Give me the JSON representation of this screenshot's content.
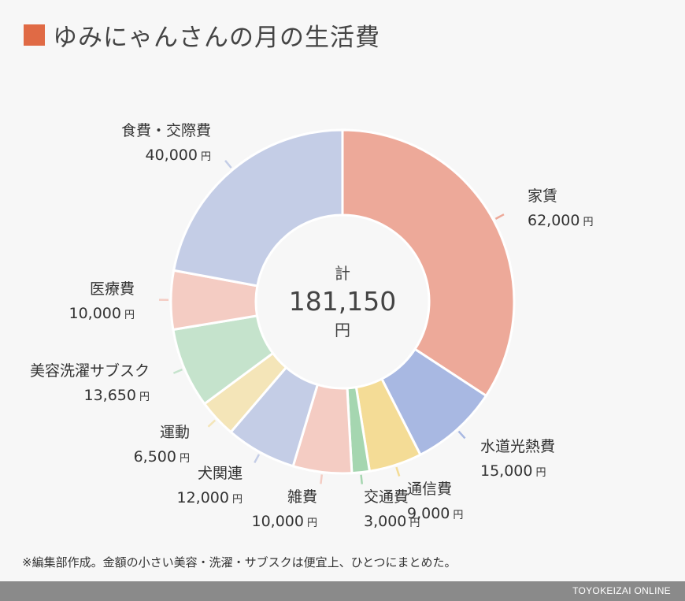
{
  "title": "ゆみにゃんさんの月の生活費",
  "title_marker_color": "#e06a45",
  "center": {
    "top": "計",
    "value": "181,150",
    "unit": "円"
  },
  "note": "※編集部作成。金額の小さい美容・洗濯・サブスクは便宜上、ひとつにまとめた。",
  "brand": "TOYOKEIZAI ONLINE",
  "chart_data": {
    "type": "pie",
    "variant": "donut",
    "total": 181150,
    "unit": "円",
    "slices": [
      {
        "label": "家賃",
        "value": 62000,
        "display": "62,000",
        "color": "#eda999"
      },
      {
        "label": "水道光熱費",
        "value": 15000,
        "display": "15,000",
        "color": "#a8b8e2"
      },
      {
        "label": "通信費",
        "value": 9000,
        "display": "9,000",
        "color": "#f4dc96"
      },
      {
        "label": "交通費",
        "value": 3000,
        "display": "3,000",
        "color": "#a5d6b0"
      },
      {
        "label": "雑費",
        "value": 10000,
        "display": "10,000",
        "color": "#f4ccc3"
      },
      {
        "label": "犬関連",
        "value": 12000,
        "display": "12,000",
        "color": "#c4cde6"
      },
      {
        "label": "運動",
        "value": 6500,
        "display": "6,500",
        "color": "#f4e5b8"
      },
      {
        "label": "美容洗濯サブスク",
        "value": 13650,
        "display": "13,650",
        "color": "#c5e3cc"
      },
      {
        "label": "医療費",
        "value": 10000,
        "display": "10,000",
        "color": "#f4ccc3"
      },
      {
        "label": "食費・交際費",
        "value": 40000,
        "display": "40,000",
        "color": "#c4cde6"
      }
    ]
  }
}
